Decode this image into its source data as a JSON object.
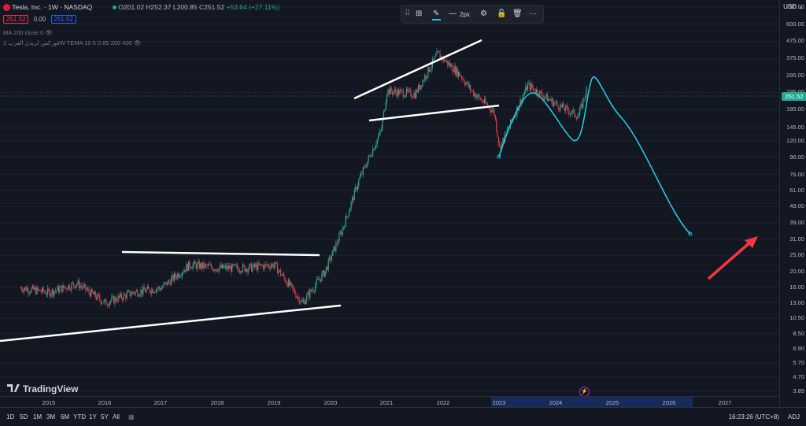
{
  "header": {
    "symbol_title": "Tesla, Inc. · 1W · NASDAQ",
    "open": "O201.02",
    "high": "H252.37",
    "low": "L200.85",
    "close": "C251.52",
    "change": "+53.64 (+27.11%)",
    "bid": "251.52",
    "spread": "0.00",
    "ask": "251.52",
    "indicator_ma": "MA 200 close 0",
    "indicator_tema": "فوركس لريدن العرب 1W TEMA 10 6 0.85 200 400"
  },
  "toolbar": {
    "width_label": "2px"
  },
  "price_axis": {
    "currency": "USD",
    "ticks": [
      "760.00",
      "600.00",
      "475.00",
      "375.00",
      "295.00",
      "235.00",
      "185.00",
      "145.00",
      "120.00",
      "96.00",
      "76.00",
      "61.00",
      "49.00",
      "39.00",
      "31.00",
      "25.00",
      "20.00",
      "16.00",
      "13.00",
      "10.50",
      "8.50",
      "6.90",
      "5.70",
      "4.70",
      "3.85"
    ],
    "current_price": "251.52"
  },
  "time_axis": {
    "years": [
      "2015",
      "2016",
      "2017",
      "2018",
      "2019",
      "2020",
      "2021",
      "2022",
      "2023",
      "2024",
      "2025",
      "2026",
      "2027"
    ]
  },
  "timeframes": [
    "1D",
    "5D",
    "1M",
    "3M",
    "6M",
    "YTD",
    "1Y",
    "5Y",
    "All"
  ],
  "status": {
    "clock": "16:23:26 (UTC+8)",
    "adj": "ADJ"
  },
  "brand": "TradingView",
  "colors": {
    "up": "#22ab94",
    "down": "#f23645",
    "projection": "#26c6da",
    "trendline": "#ffffff",
    "arrow": "#f23645"
  },
  "chart_data": {
    "type": "candlestick",
    "title": "Tesla, Inc. · 1W · NASDAQ",
    "y_scale": "log",
    "ylim": [
      3.85,
      760
    ],
    "x_range": [
      "2014",
      "2027"
    ],
    "series": [
      {
        "name": "price (approx close)",
        "x": [
          "2014.5",
          "2015.0",
          "2015.5",
          "2016.0",
          "2016.5",
          "2017.0",
          "2017.5",
          "2018.0",
          "2018.5",
          "2019.0",
          "2019.5",
          "2019.9",
          "2020.2",
          "2020.5",
          "2020.9",
          "2021.0",
          "2021.5",
          "2021.9",
          "2022.3",
          "2022.5",
          "2022.9",
          "2023.0",
          "2023.5",
          "2024.0",
          "2024.4",
          "2024.55"
        ],
        "values": [
          16,
          15,
          17,
          13,
          15,
          16,
          22,
          21,
          21,
          22,
          13,
          20,
          35,
          70,
          140,
          240,
          230,
          400,
          300,
          240,
          180,
          110,
          260,
          200,
          170,
          251.52
        ]
      },
      {
        "name": "projection",
        "x": [
          "2024.55",
          "2024.7",
          "2025.0",
          "2025.5",
          "2026.0",
          "2026.35"
        ],
        "values": [
          251.52,
          330,
          210,
          90,
          50,
          33
        ]
      }
    ]
  }
}
